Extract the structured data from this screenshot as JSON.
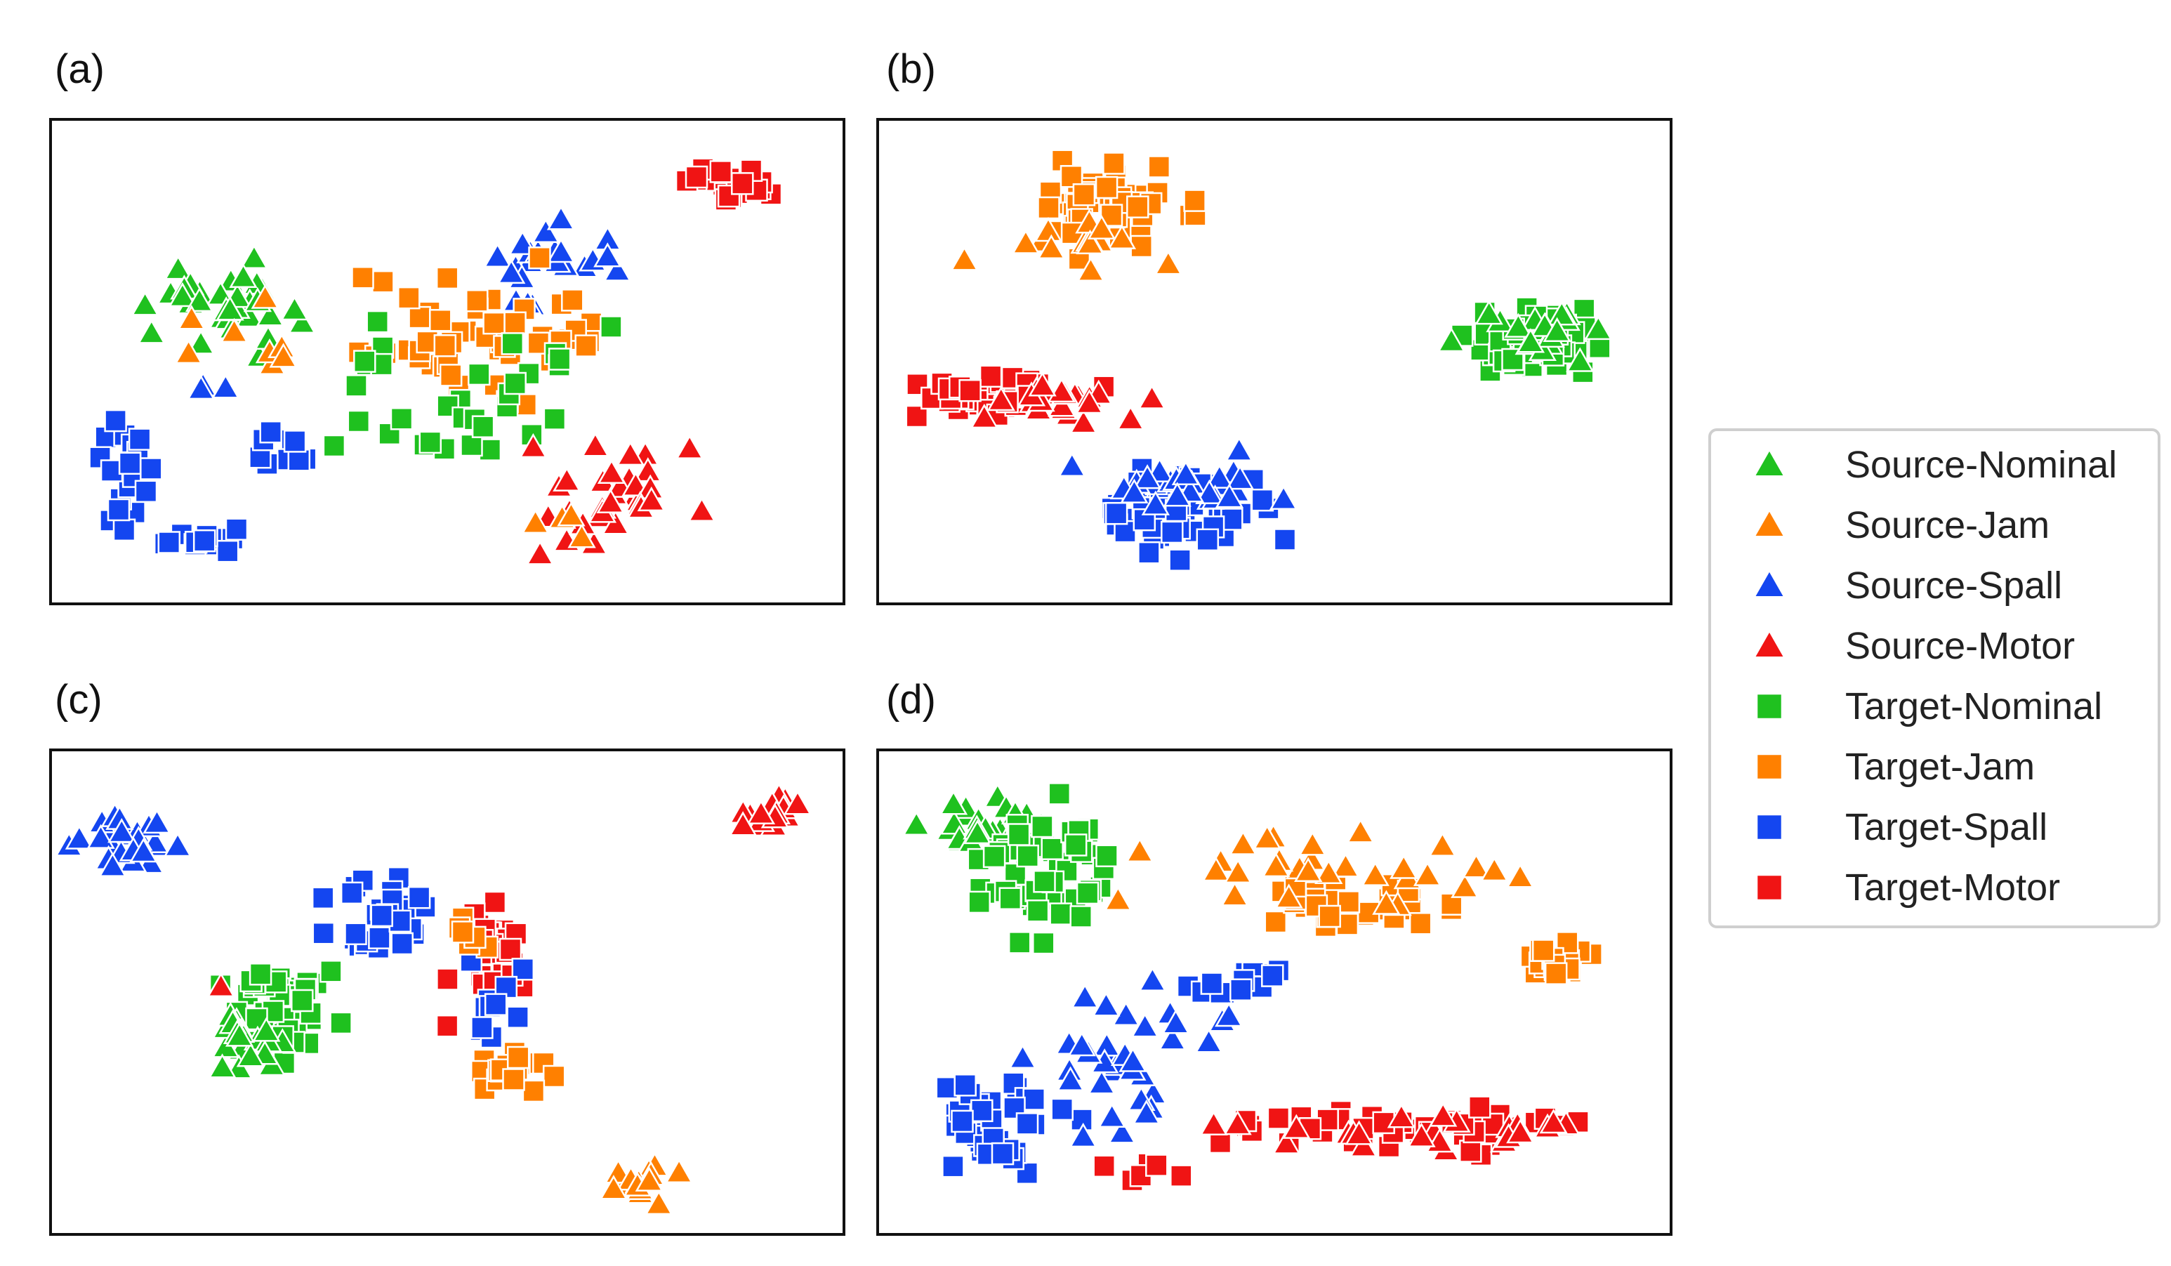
{
  "chart_data": {
    "type": "scatter",
    "kind": "t-SNE feature embedding",
    "xlim": [
      0,
      100
    ],
    "ylim": [
      0,
      100
    ],
    "series": [
      {
        "name": "Source-Nominal",
        "marker": "triangle",
        "color": "#1fc11f"
      },
      {
        "name": "Source-Jam",
        "marker": "triangle",
        "color": "#ff8000"
      },
      {
        "name": "Source-Spall",
        "marker": "triangle",
        "color": "#1446f0"
      },
      {
        "name": "Source-Motor",
        "marker": "triangle",
        "color": "#f01414"
      },
      {
        "name": "Target-Nominal",
        "marker": "square",
        "color": "#1fc11f"
      },
      {
        "name": "Target-Jam",
        "marker": "square",
        "color": "#ff8000"
      },
      {
        "name": "Target-Spall",
        "marker": "square",
        "color": "#1446f0"
      },
      {
        "name": "Target-Motor",
        "marker": "square",
        "color": "#f01414"
      }
    ],
    "legend": {
      "position": "right-center"
    },
    "panels": [
      {
        "label": "(a)",
        "clusters": [
          {
            "series": "Target-Motor",
            "cx": 88,
            "cy": 90,
            "sx": 3.5,
            "sy": 3,
            "n": 22
          },
          {
            "series": "Source-Nominal",
            "cx": 20,
            "cy": 63,
            "sx": 6.5,
            "sy": 6,
            "n": 34
          },
          {
            "series": "Source-Jam",
            "cx": 23,
            "cy": 55,
            "sx": 6,
            "sy": 5,
            "n": 8
          },
          {
            "series": "Source-Spall",
            "cx": 61,
            "cy": 70,
            "sx": 5.5,
            "sy": 7,
            "n": 22
          },
          {
            "series": "Source-Spall",
            "cx": 18,
            "cy": 45,
            "sx": 1.5,
            "sy": 1.5,
            "n": 3
          },
          {
            "series": "Target-Jam",
            "cx": 50,
            "cy": 56,
            "sx": 9,
            "sy": 8,
            "n": 40
          },
          {
            "series": "Target-Jam",
            "cx": 66,
            "cy": 58,
            "sx": 3,
            "sy": 5,
            "n": 10
          },
          {
            "series": "Target-Nominal",
            "cx": 50,
            "cy": 37,
            "sx": 9,
            "sy": 5,
            "n": 20
          },
          {
            "series": "Target-Nominal",
            "cx": 63,
            "cy": 50,
            "sx": 4,
            "sy": 4,
            "n": 8
          },
          {
            "series": "Target-Nominal",
            "cx": 40,
            "cy": 48,
            "sx": 3,
            "sy": 5,
            "n": 6
          },
          {
            "series": "Target-Spall",
            "cx": 8,
            "cy": 25,
            "sx": 3,
            "sy": 9,
            "n": 22
          },
          {
            "series": "Target-Spall",
            "cx": 19,
            "cy": 10,
            "sx": 4,
            "sy": 1.5,
            "n": 12
          },
          {
            "series": "Target-Spall",
            "cx": 28,
            "cy": 30,
            "sx": 5,
            "sy": 3,
            "n": 10
          },
          {
            "series": "Source-Motor",
            "cx": 72,
            "cy": 20,
            "sx": 7,
            "sy": 7,
            "n": 32
          },
          {
            "series": "Source-Jam",
            "cx": 66,
            "cy": 14,
            "sx": 4,
            "sy": 4,
            "n": 4
          }
        ]
      },
      {
        "label": "(b)",
        "clusters": [
          {
            "series": "Target-Jam",
            "cx": 27,
            "cy": 84,
            "sx": 6.5,
            "sy": 6,
            "n": 50
          },
          {
            "series": "Source-Jam",
            "cx": 24,
            "cy": 76,
            "sx": 6,
            "sy": 3,
            "n": 14
          },
          {
            "series": "Target-Nominal",
            "cx": 85,
            "cy": 55,
            "sx": 5.5,
            "sy": 4,
            "n": 50
          },
          {
            "series": "Source-Nominal",
            "cx": 86,
            "cy": 57,
            "sx": 6,
            "sy": 4,
            "n": 20
          },
          {
            "series": "Target-Motor",
            "cx": 12,
            "cy": 43,
            "sx": 6,
            "sy": 3,
            "n": 40
          },
          {
            "series": "Source-Motor",
            "cx": 20,
            "cy": 41,
            "sx": 6,
            "sy": 3,
            "n": 22
          },
          {
            "series": "Target-Spall",
            "cx": 39,
            "cy": 17,
            "sx": 6.5,
            "sy": 6,
            "n": 55
          },
          {
            "series": "Source-Spall",
            "cx": 42,
            "cy": 23,
            "sx": 9,
            "sy": 4,
            "n": 24
          }
        ]
      },
      {
        "label": "(c)",
        "clusters": [
          {
            "series": "Source-Spall",
            "cx": 8,
            "cy": 85,
            "sx": 3.5,
            "sy": 4,
            "n": 24
          },
          {
            "series": "Source-Motor",
            "cx": 92,
            "cy": 90,
            "sx": 2,
            "sy": 3,
            "n": 18
          },
          {
            "series": "Target-Spall",
            "cx": 41,
            "cy": 66,
            "sx": 4.5,
            "sy": 6,
            "n": 32
          },
          {
            "series": "Target-Nominal",
            "cx": 28,
            "cy": 47,
            "sx": 4,
            "sy": 6,
            "n": 40
          },
          {
            "series": "Source-Nominal",
            "cx": 24,
            "cy": 40,
            "sx": 3,
            "sy": 4,
            "n": 20
          },
          {
            "series": "Target-Motor",
            "cx": 56,
            "cy": 60,
            "sx": 3.5,
            "sy": 6,
            "n": 30
          },
          {
            "series": "Target-Spall",
            "cx": 55,
            "cy": 49,
            "sx": 3,
            "sy": 9,
            "n": 12
          },
          {
            "series": "Target-Jam",
            "cx": 58,
            "cy": 33,
            "sx": 3,
            "sy": 3.5,
            "n": 22
          },
          {
            "series": "Target-Jam",
            "cx": 52,
            "cy": 62,
            "sx": 3,
            "sy": 3,
            "n": 6
          },
          {
            "series": "Source-Jam",
            "cx": 75,
            "cy": 8,
            "sx": 4,
            "sy": 2,
            "n": 16
          },
          {
            "series": "Source-Motor",
            "cx": 20,
            "cy": 51,
            "sx": 0.5,
            "sy": 0.5,
            "n": 1
          },
          {
            "series": "Target-Motor",
            "cx": 51,
            "cy": 42,
            "sx": 0.5,
            "sy": 0.5,
            "n": 1
          }
        ]
      },
      {
        "label": "(d)",
        "clusters": [
          {
            "series": "Source-Nominal",
            "cx": 12,
            "cy": 88,
            "sx": 6,
            "sy": 4,
            "n": 26
          },
          {
            "series": "Target-Nominal",
            "cx": 20,
            "cy": 78,
            "sx": 6,
            "sy": 8,
            "n": 55
          },
          {
            "series": "Target-Jam",
            "cx": 59,
            "cy": 70,
            "sx": 9,
            "sy": 4,
            "n": 30
          },
          {
            "series": "Source-Jam",
            "cx": 65,
            "cy": 78,
            "sx": 14,
            "sy": 5,
            "n": 30
          },
          {
            "series": "Target-Jam",
            "cx": 87,
            "cy": 58,
            "sx": 2.5,
            "sy": 4,
            "n": 20
          },
          {
            "series": "Target-Spall",
            "cx": 13,
            "cy": 20,
            "sx": 5.5,
            "sy": 7,
            "n": 40
          },
          {
            "series": "Target-Spall",
            "cx": 45,
            "cy": 52,
            "sx": 4,
            "sy": 3,
            "n": 16
          },
          {
            "series": "Source-Spall",
            "cx": 30,
            "cy": 35,
            "sx": 7,
            "sy": 10,
            "n": 34
          },
          {
            "series": "Target-Motor",
            "cx": 68,
            "cy": 20,
            "sx": 14,
            "sy": 3,
            "n": 48
          },
          {
            "series": "Source-Motor",
            "cx": 70,
            "cy": 18,
            "sx": 14,
            "sy": 2.5,
            "n": 24
          },
          {
            "series": "Target-Motor",
            "cx": 35,
            "cy": 10,
            "sx": 4,
            "sy": 2,
            "n": 6
          }
        ]
      }
    ]
  }
}
